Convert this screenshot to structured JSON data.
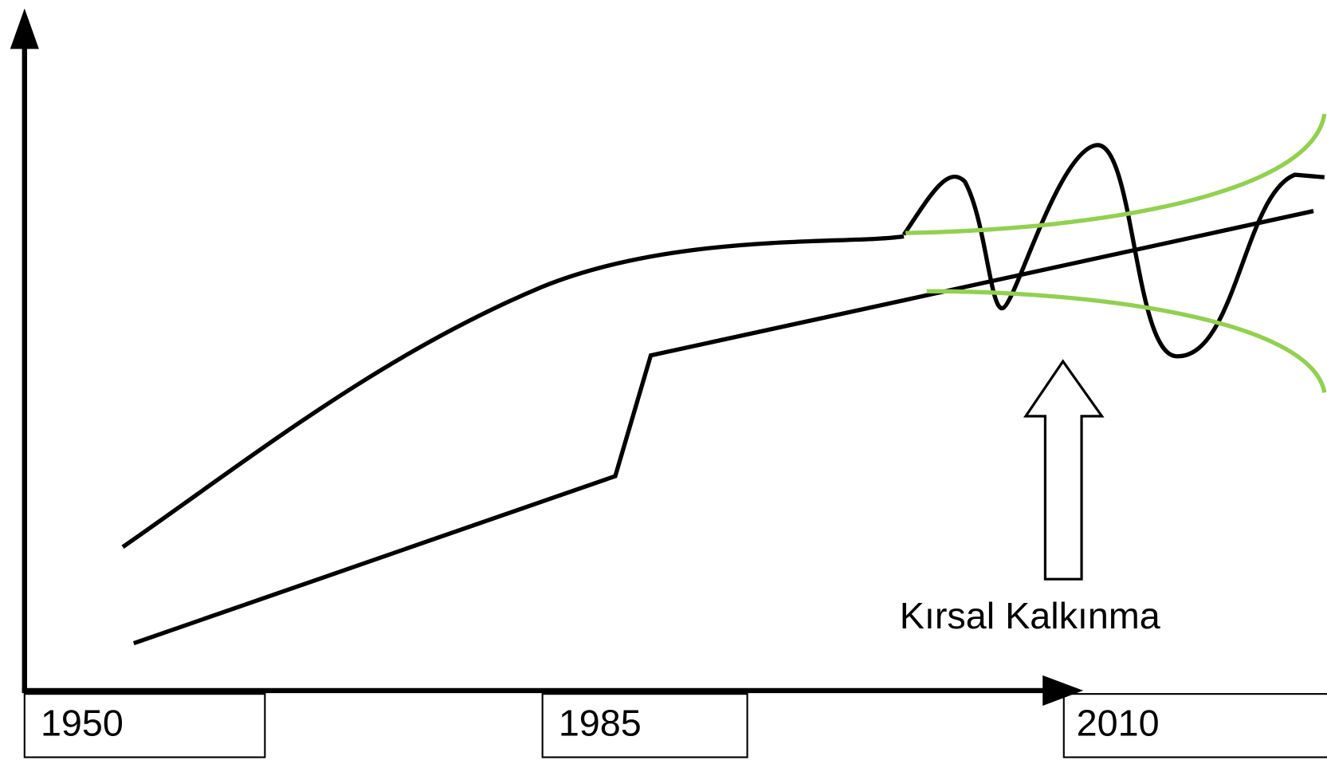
{
  "timeline": {
    "labels": [
      "1950",
      "1985",
      "2010"
    ]
  },
  "annotation": {
    "label": "Kırsal Kalkınma"
  }
}
